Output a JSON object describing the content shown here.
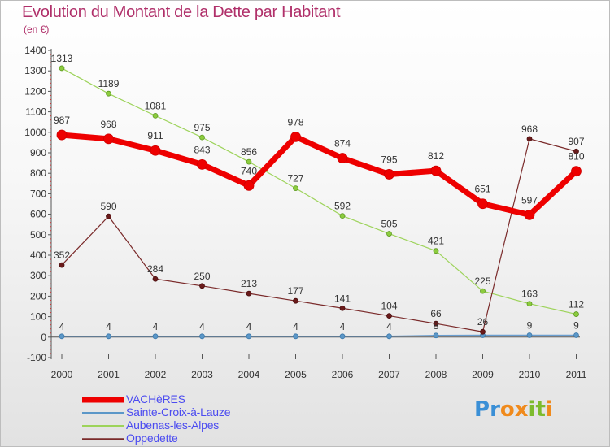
{
  "title": "Evolution du Montant de la Dette par Habitant",
  "subtitle": "(en €)",
  "logo": {
    "text": "Proxiti",
    "colors": [
      "#3a8fd6",
      "#f08a1c",
      "#7dbb2e"
    ]
  },
  "chart_data": {
    "type": "line",
    "title": "Evolution du Montant de la Dette par Habitant",
    "subtitle": "(en €)",
    "xlabel": "",
    "ylabel": "",
    "ylim": [
      -100,
      1400
    ],
    "yticks": [
      -100,
      0,
      100,
      200,
      300,
      400,
      500,
      600,
      700,
      800,
      900,
      1000,
      1100,
      1200,
      1300,
      1400
    ],
    "categories": [
      "2000",
      "2001",
      "2002",
      "2003",
      "2004",
      "2005",
      "2006",
      "2007",
      "2008",
      "2009",
      "2010",
      "2011"
    ],
    "grid": false,
    "legend_position": "bottom-left",
    "series": [
      {
        "name": "VACHèRES",
        "color": "#ee0000",
        "values": [
          987,
          968,
          911,
          843,
          740,
          978,
          874,
          795,
          812,
          651,
          597,
          810
        ]
      },
      {
        "name": "Sainte-Croix-à-Lauze",
        "color": "#5b97c8",
        "values": [
          4,
          4,
          4,
          4,
          4,
          4,
          4,
          4,
          8,
          9,
          9,
          9
        ]
      },
      {
        "name": "Aubenas-les-Alpes",
        "color": "#9dd35a",
        "values": [
          1313,
          1189,
          1081,
          975,
          856,
          727,
          592,
          505,
          421,
          225,
          163,
          112
        ]
      },
      {
        "name": "Oppedette",
        "color": "#7a2a2a",
        "values": [
          352,
          590,
          284,
          250,
          213,
          177,
          141,
          104,
          66,
          26,
          968,
          907
        ]
      }
    ],
    "data_labels": [
      [
        "987",
        "968",
        "911",
        "843",
        "740",
        "978",
        "874",
        "795",
        "812",
        "651",
        "597",
        "810"
      ],
      [
        "4",
        "4",
        "4",
        "4",
        "4",
        "4",
        "4",
        "4",
        "8",
        "",
        "9",
        "9"
      ],
      [
        "1313",
        "1189",
        "1081",
        "975",
        "856",
        "727",
        "592",
        "505",
        "421",
        "225",
        "163",
        "112"
      ],
      [
        "352",
        "590",
        "284",
        "250",
        "213",
        "177",
        "141",
        "104",
        "66",
        "26",
        "968",
        "907"
      ]
    ]
  }
}
